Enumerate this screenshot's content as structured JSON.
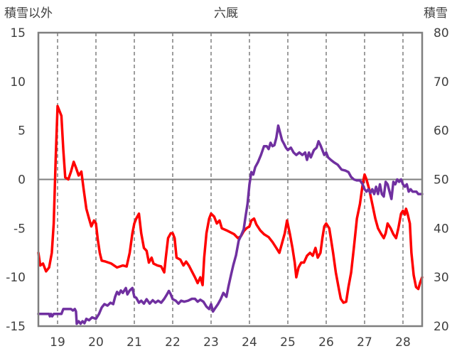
{
  "chart_data": {
    "type": "line",
    "title": "六厩",
    "ylabel_left": "積雪以外",
    "ylabel_right": "積雪",
    "categories": [
      "19",
      "20",
      "21",
      "22",
      "23",
      "24",
      "25",
      "26",
      "27",
      "28"
    ],
    "x_range": [
      18.5,
      28.5
    ],
    "ylim_left": [
      -15,
      15
    ],
    "yticks_left": [
      15,
      10,
      5,
      0,
      -5,
      -10,
      -15
    ],
    "ylim_right": [
      20,
      80
    ],
    "yticks_right": [
      80,
      70,
      60,
      50,
      40,
      30,
      20
    ],
    "grid": "dashed vertical at each day",
    "series": [
      {
        "axis": "left",
        "color": "#ff0000",
        "points": [
          [
            18.5,
            -7.5
          ],
          [
            18.55,
            -8.8
          ],
          [
            18.62,
            -8.6
          ],
          [
            18.7,
            -9.4
          ],
          [
            18.78,
            -9.0
          ],
          [
            18.85,
            -7.5
          ],
          [
            18.9,
            -4.5
          ],
          [
            18.95,
            2.0
          ],
          [
            19.0,
            7.5
          ],
          [
            19.05,
            7.0
          ],
          [
            19.1,
            6.5
          ],
          [
            19.15,
            3.0
          ],
          [
            19.2,
            0.2
          ],
          [
            19.28,
            0.0
          ],
          [
            19.35,
            0.8
          ],
          [
            19.42,
            1.8
          ],
          [
            19.48,
            1.2
          ],
          [
            19.55,
            0.4
          ],
          [
            19.62,
            0.8
          ],
          [
            19.68,
            -1.0
          ],
          [
            19.75,
            -3.0
          ],
          [
            19.82,
            -4.0
          ],
          [
            19.88,
            -4.8
          ],
          [
            19.95,
            -4.2
          ],
          [
            20.0,
            -4.5
          ],
          [
            20.05,
            -6.2
          ],
          [
            20.1,
            -7.5
          ],
          [
            20.15,
            -8.3
          ],
          [
            20.25,
            -8.4
          ],
          [
            20.4,
            -8.6
          ],
          [
            20.55,
            -9.0
          ],
          [
            20.7,
            -8.8
          ],
          [
            20.8,
            -8.9
          ],
          [
            20.88,
            -7.5
          ],
          [
            20.95,
            -5.5
          ],
          [
            21.0,
            -4.5
          ],
          [
            21.05,
            -4.0
          ],
          [
            21.12,
            -3.5
          ],
          [
            21.18,
            -5.5
          ],
          [
            21.25,
            -7.0
          ],
          [
            21.32,
            -7.3
          ],
          [
            21.38,
            -8.5
          ],
          [
            21.45,
            -8.0
          ],
          [
            21.5,
            -8.6
          ],
          [
            21.6,
            -8.8
          ],
          [
            21.7,
            -8.9
          ],
          [
            21.78,
            -9.5
          ],
          [
            21.82,
            -8.0
          ],
          [
            21.88,
            -6.0
          ],
          [
            21.95,
            -5.5
          ],
          [
            22.0,
            -5.5
          ],
          [
            22.05,
            -6.0
          ],
          [
            22.1,
            -8.0
          ],
          [
            22.2,
            -8.2
          ],
          [
            22.28,
            -8.8
          ],
          [
            22.35,
            -8.4
          ],
          [
            22.42,
            -8.8
          ],
          [
            22.5,
            -9.4
          ],
          [
            22.58,
            -10.0
          ],
          [
            22.65,
            -10.6
          ],
          [
            22.72,
            -10.0
          ],
          [
            22.78,
            -10.8
          ],
          [
            22.82,
            -8.0
          ],
          [
            22.88,
            -5.5
          ],
          [
            22.95,
            -4.0
          ],
          [
            23.0,
            -3.5
          ],
          [
            23.08,
            -3.8
          ],
          [
            23.15,
            -4.5
          ],
          [
            23.22,
            -4.2
          ],
          [
            23.28,
            -5.0
          ],
          [
            23.4,
            -5.2
          ],
          [
            23.5,
            -5.4
          ],
          [
            23.6,
            -5.6
          ],
          [
            23.7,
            -6.0
          ],
          [
            23.78,
            -5.8
          ],
          [
            23.85,
            -5.3
          ],
          [
            23.92,
            -5.0
          ],
          [
            24.0,
            -4.8
          ],
          [
            24.05,
            -4.2
          ],
          [
            24.12,
            -4.0
          ],
          [
            24.18,
            -4.6
          ],
          [
            24.28,
            -5.2
          ],
          [
            24.38,
            -5.6
          ],
          [
            24.5,
            -5.9
          ],
          [
            24.6,
            -6.4
          ],
          [
            24.7,
            -7.0
          ],
          [
            24.78,
            -7.5
          ],
          [
            24.85,
            -6.5
          ],
          [
            24.92,
            -5.5
          ],
          [
            24.98,
            -4.2
          ],
          [
            25.05,
            -5.5
          ],
          [
            25.12,
            -7.0
          ],
          [
            25.18,
            -8.5
          ],
          [
            25.22,
            -10.0
          ],
          [
            25.28,
            -9.0
          ],
          [
            25.35,
            -8.5
          ],
          [
            25.42,
            -8.5
          ],
          [
            25.5,
            -7.8
          ],
          [
            25.58,
            -7.5
          ],
          [
            25.65,
            -7.8
          ],
          [
            25.72,
            -7.0
          ],
          [
            25.78,
            -8.0
          ],
          [
            25.85,
            -7.5
          ],
          [
            25.9,
            -6.0
          ],
          [
            25.95,
            -4.8
          ],
          [
            26.0,
            -4.5
          ],
          [
            26.08,
            -5.0
          ],
          [
            26.12,
            -6.0
          ],
          [
            26.18,
            -7.5
          ],
          [
            26.25,
            -9.5
          ],
          [
            26.32,
            -11.0
          ],
          [
            26.38,
            -12.2
          ],
          [
            26.45,
            -12.6
          ],
          [
            26.52,
            -12.5
          ],
          [
            26.58,
            -11.0
          ],
          [
            26.65,
            -9.5
          ],
          [
            26.72,
            -7.0
          ],
          [
            26.8,
            -4.0
          ],
          [
            26.88,
            -2.5
          ],
          [
            26.95,
            -0.5
          ],
          [
            27.0,
            0.5
          ],
          [
            27.05,
            0.0
          ],
          [
            27.12,
            -1.0
          ],
          [
            27.2,
            -2.5
          ],
          [
            27.28,
            -4.0
          ],
          [
            27.35,
            -5.0
          ],
          [
            27.42,
            -5.5
          ],
          [
            27.5,
            -6.0
          ],
          [
            27.55,
            -5.5
          ],
          [
            27.6,
            -4.5
          ],
          [
            27.68,
            -5.0
          ],
          [
            27.75,
            -5.6
          ],
          [
            27.82,
            -6.0
          ],
          [
            27.88,
            -5.0
          ],
          [
            27.95,
            -3.5
          ],
          [
            28.0,
            -3.2
          ],
          [
            28.05,
            -3.6
          ],
          [
            28.08,
            -3.0
          ],
          [
            28.12,
            -3.5
          ],
          [
            28.18,
            -4.5
          ],
          [
            28.22,
            -7.5
          ],
          [
            28.28,
            -9.8
          ],
          [
            28.34,
            -11.0
          ],
          [
            28.4,
            -11.2
          ],
          [
            28.45,
            -10.5
          ],
          [
            28.5,
            -10.0
          ]
        ]
      },
      {
        "axis": "right",
        "color": "#7030a0",
        "points": [
          [
            18.5,
            22.5
          ],
          [
            18.6,
            22.5
          ],
          [
            18.7,
            22.5
          ],
          [
            18.78,
            22.5
          ],
          [
            18.8,
            22.0
          ],
          [
            18.83,
            22.5
          ],
          [
            18.86,
            22.0
          ],
          [
            18.9,
            22.5
          ],
          [
            18.95,
            22.5
          ],
          [
            19.0,
            22.5
          ],
          [
            19.1,
            22.5
          ],
          [
            19.15,
            23.5
          ],
          [
            19.25,
            23.5
          ],
          [
            19.35,
            23.5
          ],
          [
            19.4,
            23.2
          ],
          [
            19.45,
            23.5
          ],
          [
            19.48,
            23.0
          ],
          [
            19.5,
            20.5
          ],
          [
            19.55,
            21.0
          ],
          [
            19.6,
            20.5
          ],
          [
            19.65,
            21.0
          ],
          [
            19.7,
            20.6
          ],
          [
            19.75,
            21.5
          ],
          [
            19.82,
            21.2
          ],
          [
            19.9,
            21.8
          ],
          [
            20.0,
            21.5
          ],
          [
            20.08,
            22.5
          ],
          [
            20.15,
            23.8
          ],
          [
            20.22,
            24.5
          ],
          [
            20.3,
            24.2
          ],
          [
            20.38,
            24.8
          ],
          [
            20.45,
            24.5
          ],
          [
            20.5,
            26.0
          ],
          [
            20.55,
            27.0
          ],
          [
            20.6,
            26.5
          ],
          [
            20.65,
            27.3
          ],
          [
            20.7,
            26.8
          ],
          [
            20.78,
            27.8
          ],
          [
            20.82,
            26.5
          ],
          [
            20.88,
            27.3
          ],
          [
            20.95,
            27.8
          ],
          [
            21.0,
            26.0
          ],
          [
            21.05,
            25.8
          ],
          [
            21.12,
            24.8
          ],
          [
            21.18,
            25.2
          ],
          [
            21.25,
            24.6
          ],
          [
            21.32,
            25.5
          ],
          [
            21.4,
            24.6
          ],
          [
            21.48,
            25.3
          ],
          [
            21.55,
            24.8
          ],
          [
            21.62,
            25.2
          ],
          [
            21.7,
            24.8
          ],
          [
            21.78,
            25.6
          ],
          [
            21.85,
            26.5
          ],
          [
            21.9,
            27.2
          ],
          [
            21.95,
            26.5
          ],
          [
            22.0,
            25.5
          ],
          [
            22.08,
            25.2
          ],
          [
            22.15,
            24.6
          ],
          [
            22.22,
            25.2
          ],
          [
            22.3,
            25.0
          ],
          [
            22.4,
            25.2
          ],
          [
            22.5,
            25.6
          ],
          [
            22.58,
            25.6
          ],
          [
            22.65,
            25.0
          ],
          [
            22.72,
            25.4
          ],
          [
            22.8,
            25.0
          ],
          [
            22.88,
            24.0
          ],
          [
            22.95,
            23.5
          ],
          [
            23.0,
            24.5
          ],
          [
            23.05,
            23.0
          ],
          [
            23.1,
            23.6
          ],
          [
            23.18,
            24.5
          ],
          [
            23.25,
            25.5
          ],
          [
            23.32,
            26.8
          ],
          [
            23.4,
            26.0
          ],
          [
            23.45,
            28.0
          ],
          [
            23.52,
            30.5
          ],
          [
            23.58,
            32.5
          ],
          [
            23.65,
            34.5
          ],
          [
            23.72,
            37.5
          ],
          [
            23.78,
            38.5
          ],
          [
            23.85,
            39.8
          ],
          [
            23.9,
            42.5
          ],
          [
            23.95,
            45.0
          ],
          [
            24.0,
            49.0
          ],
          [
            24.05,
            51.5
          ],
          [
            24.1,
            51.0
          ],
          [
            24.15,
            52.5
          ],
          [
            24.22,
            53.5
          ],
          [
            24.3,
            55.0
          ],
          [
            24.38,
            56.8
          ],
          [
            24.45,
            56.8
          ],
          [
            24.5,
            56.2
          ],
          [
            24.55,
            57.5
          ],
          [
            24.6,
            56.8
          ],
          [
            24.65,
            57.0
          ],
          [
            24.7,
            58.5
          ],
          [
            24.75,
            61.0
          ],
          [
            24.8,
            59.5
          ],
          [
            24.85,
            58.0
          ],
          [
            24.9,
            57.3
          ],
          [
            24.95,
            56.5
          ],
          [
            25.0,
            56.0
          ],
          [
            25.08,
            56.5
          ],
          [
            25.15,
            55.5
          ],
          [
            25.22,
            55.0
          ],
          [
            25.3,
            55.5
          ],
          [
            25.38,
            55.0
          ],
          [
            25.45,
            55.5
          ],
          [
            25.5,
            54.0
          ],
          [
            25.55,
            55.5
          ],
          [
            25.6,
            54.5
          ],
          [
            25.68,
            56.0
          ],
          [
            25.75,
            56.5
          ],
          [
            25.8,
            57.8
          ],
          [
            25.85,
            57.0
          ],
          [
            25.9,
            56.0
          ],
          [
            25.95,
            55.0
          ],
          [
            26.0,
            55.5
          ],
          [
            26.05,
            54.5
          ],
          [
            26.12,
            54.0
          ],
          [
            26.2,
            53.5
          ],
          [
            26.3,
            53.0
          ],
          [
            26.4,
            52.0
          ],
          [
            26.5,
            51.8
          ],
          [
            26.58,
            51.5
          ],
          [
            26.65,
            50.5
          ],
          [
            26.72,
            50.0
          ],
          [
            26.8,
            49.8
          ],
          [
            26.88,
            49.8
          ],
          [
            26.95,
            49.0
          ],
          [
            27.0,
            48.0
          ],
          [
            27.05,
            47.5
          ],
          [
            27.1,
            48.0
          ],
          [
            27.15,
            47.2
          ],
          [
            27.2,
            48.0
          ],
          [
            27.25,
            47.0
          ],
          [
            27.3,
            48.5
          ],
          [
            27.35,
            47.0
          ],
          [
            27.4,
            49.0
          ],
          [
            27.45,
            47.0
          ],
          [
            27.5,
            46.5
          ],
          [
            27.55,
            49.5
          ],
          [
            27.6,
            49.0
          ],
          [
            27.65,
            47.5
          ],
          [
            27.7,
            46.0
          ],
          [
            27.75,
            49.5
          ],
          [
            27.8,
            49.0
          ],
          [
            27.85,
            50.0
          ],
          [
            27.9,
            49.5
          ],
          [
            27.95,
            50.0
          ],
          [
            28.0,
            49.0
          ],
          [
            28.05,
            48.5
          ],
          [
            28.1,
            49.0
          ],
          [
            28.15,
            47.5
          ],
          [
            28.2,
            48.0
          ],
          [
            28.25,
            47.5
          ],
          [
            28.3,
            47.5
          ],
          [
            28.35,
            47.5
          ],
          [
            28.4,
            47.0
          ],
          [
            28.45,
            47.0
          ],
          [
            28.5,
            47.0
          ]
        ]
      }
    ]
  }
}
